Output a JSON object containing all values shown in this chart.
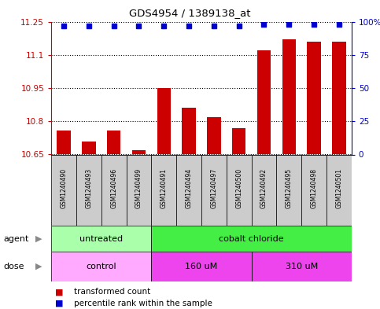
{
  "title": "GDS4954 / 1389138_at",
  "samples": [
    "GSM1240490",
    "GSM1240493",
    "GSM1240496",
    "GSM1240499",
    "GSM1240491",
    "GSM1240494",
    "GSM1240497",
    "GSM1240500",
    "GSM1240492",
    "GSM1240495",
    "GSM1240498",
    "GSM1240501"
  ],
  "bar_values": [
    10.76,
    10.71,
    10.76,
    10.67,
    10.95,
    10.86,
    10.82,
    10.77,
    11.12,
    11.17,
    11.16,
    11.16
  ],
  "percentile_values": [
    97,
    97,
    97,
    97,
    97,
    97,
    97,
    97,
    98,
    98,
    98,
    98
  ],
  "ylim_left": [
    10.65,
    11.25
  ],
  "ylim_right": [
    0,
    100
  ],
  "yticks_left": [
    10.65,
    10.8,
    10.95,
    11.1,
    11.25
  ],
  "yticks_right": [
    0,
    25,
    50,
    75,
    100
  ],
  "ytick_labels_left": [
    "10.65",
    "10.8",
    "10.95",
    "11.1",
    "11.25"
  ],
  "ytick_labels_right": [
    "0",
    "25",
    "50",
    "75",
    "100%"
  ],
  "bar_color": "#cc0000",
  "dot_color": "#0000cc",
  "agent_groups": [
    {
      "label": "untreated",
      "start": 0,
      "end": 4,
      "color": "#aaffaa"
    },
    {
      "label": "cobalt chloride",
      "start": 4,
      "end": 12,
      "color": "#44ee44"
    }
  ],
  "dose_groups": [
    {
      "label": "control",
      "start": 0,
      "end": 4,
      "color": "#ffaaff"
    },
    {
      "label": "160 uM",
      "start": 4,
      "end": 8,
      "color": "#ee44ee"
    },
    {
      "label": "310 uM",
      "start": 8,
      "end": 12,
      "color": "#ee44ee"
    }
  ],
  "legend_items": [
    {
      "color": "#cc0000",
      "label": "transformed count"
    },
    {
      "color": "#0000cc",
      "label": "percentile rank within the sample"
    }
  ],
  "sample_box_color": "#cccccc",
  "left_axis_color": "#cc0000",
  "right_axis_color": "#0000cc",
  "fig_bg": "#ffffff"
}
